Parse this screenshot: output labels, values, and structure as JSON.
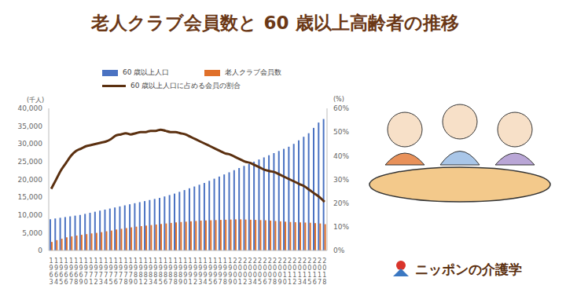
{
  "logo": "ニッポンの介護学",
  "chart_data": {
    "type": "bar",
    "title": "老人クラブ会員数と 60 歳以上高齢者の推移",
    "ylabel": "(千人)",
    "y2label": "(%)",
    "legend": "top",
    "grid": false,
    "categories": [
      "1963",
      "1964",
      "1965",
      "1966",
      "1967",
      "1968",
      "1969",
      "1970",
      "1971",
      "1972",
      "1973",
      "1974",
      "1975",
      "1976",
      "1977",
      "1978",
      "1979",
      "1980",
      "1981",
      "1982",
      "1983",
      "1984",
      "1985",
      "1986",
      "1987",
      "1988",
      "1989",
      "1990",
      "1991",
      "1992",
      "1993",
      "1994",
      "1995",
      "1996",
      "1997",
      "1998",
      "1999",
      "2000",
      "2001",
      "2002",
      "2003",
      "2004",
      "2005",
      "2006",
      "2007",
      "2008",
      "2009",
      "2010",
      "2011",
      "2012",
      "2013",
      "2014",
      "2015",
      "2016",
      "2017",
      "2018"
    ],
    "series": [
      {
        "name": "60 歳以上人口",
        "color": "#4a72c2",
        "values": [
          8800,
          9000,
          9200,
          9400,
          9600,
          9800,
          10000,
          10300,
          10600,
          10900,
          11200,
          11500,
          11800,
          12100,
          12400,
          12700,
          13000,
          13300,
          13600,
          13900,
          14200,
          14500,
          14800,
          15200,
          15600,
          16000,
          16500,
          17000,
          17500,
          18000,
          18500,
          19000,
          19600,
          20200,
          20800,
          21400,
          22000,
          22600,
          23200,
          23800,
          24400,
          25000,
          25600,
          26200,
          26800,
          27400,
          28000,
          28600,
          29200,
          30000,
          31000,
          32000,
          33000,
          34500,
          36000,
          37000
        ]
      },
      {
        "name": "老人クラブ会員数",
        "color": "#e0702a",
        "values": [
          2400,
          2900,
          3300,
          3700,
          3950,
          4200,
          4400,
          4600,
          4800,
          4950,
          5150,
          5400,
          5600,
          5900,
          6100,
          6300,
          6500,
          6700,
          6850,
          7000,
          7150,
          7300,
          7450,
          7600,
          7750,
          7900,
          8000,
          8100,
          8200,
          8300,
          8400,
          8450,
          8500,
          8550,
          8600,
          8650,
          8700,
          8750,
          8750,
          8700,
          8650,
          8600,
          8550,
          8500,
          8400,
          8300,
          8200,
          8100,
          8000,
          7950,
          7900,
          7850,
          7800,
          7700,
          7600,
          7400
        ]
      },
      {
        "name": "60 歳以上人口に占める会員の割合",
        "type": "line",
        "axis": "y2",
        "color": "#5b3010",
        "values": [
          26,
          30,
          34,
          37,
          40,
          42,
          43,
          44,
          44.5,
          45,
          45.5,
          46,
          47,
          48.5,
          49,
          49.5,
          49,
          49.5,
          50,
          50,
          50.5,
          50.5,
          51,
          50.5,
          50,
          50,
          49.5,
          49,
          48,
          47,
          46,
          45,
          44,
          43,
          42,
          41,
          40.5,
          39.5,
          38.5,
          37.5,
          37,
          36,
          35,
          34,
          33.5,
          33,
          32,
          31,
          30,
          29,
          28,
          27,
          25.5,
          24,
          22.5,
          20.5
        ]
      }
    ],
    "ylim": [
      0,
      40000
    ],
    "yticks": [
      0,
      {
        "value": 5000,
        "label": "5,000"
      },
      {
        "value": 10000,
        "label": "10,000"
      },
      {
        "value": 15000,
        "label": "15,000"
      },
      {
        "value": 20000,
        "label": "20,000"
      },
      {
        "value": 25000,
        "label": "25,000"
      },
      {
        "value": 30000,
        "label": "30,000"
      },
      {
        "value": 35000,
        "label": "35,000"
      },
      {
        "value": 40000,
        "label": "40,000"
      }
    ],
    "y2lim": [
      0,
      60
    ],
    "y2ticks": [
      {
        "value": 0,
        "label": "0%"
      },
      {
        "value": 10,
        "label": "10%"
      },
      {
        "value": 20,
        "label": "20%"
      },
      {
        "value": 30,
        "label": "30%"
      },
      {
        "value": 40,
        "label": "40%"
      },
      {
        "value": 50,
        "label": "50%"
      },
      {
        "value": 60,
        "label": "60%"
      }
    ]
  }
}
